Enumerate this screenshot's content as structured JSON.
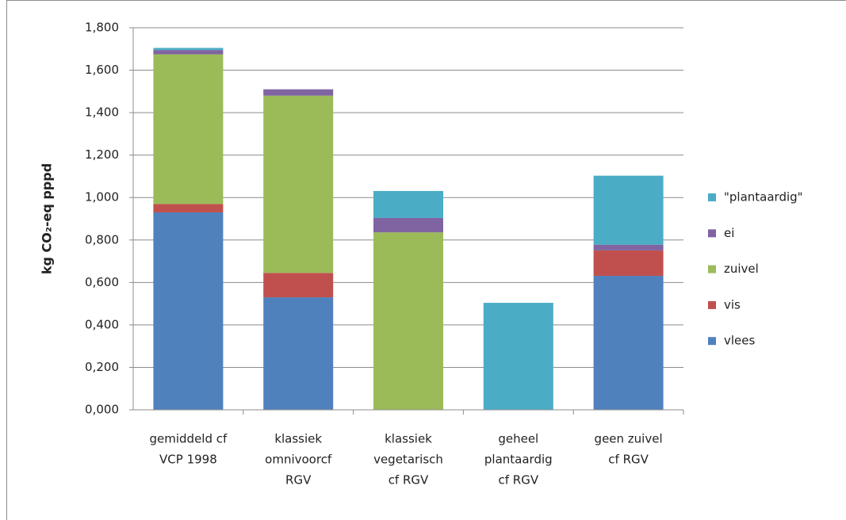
{
  "chart_data": {
    "type": "stacked_bar",
    "ylabel": "kg CO₂-eq pppd",
    "categories": [
      [
        "gemiddeld cf",
        "VCP 1998"
      ],
      [
        "klassiek",
        "omnivoorcf",
        "RGV"
      ],
      [
        "klassiek",
        "vegetarisch",
        "cf RGV"
      ],
      [
        "geheel",
        "plantaardig",
        "cf RGV"
      ],
      [
        "geen zuivel",
        "cf RGV"
      ]
    ],
    "series": [
      {
        "name": "vlees",
        "color": "#4f81bd",
        "values": [
          0.93,
          0.53,
          0,
          0,
          0.631
        ]
      },
      {
        "name": "vis",
        "color": "#c0504d",
        "values": [
          0.04,
          0.115,
          0,
          0,
          0.12
        ]
      },
      {
        "name": "zuivel",
        "color": "#9bbb59",
        "values": [
          0.705,
          0.835,
          0.836,
          0,
          0
        ]
      },
      {
        "name": "ei",
        "color": "#8064a2",
        "values": [
          0.02,
          0.03,
          0.068,
          0,
          0.027
        ]
      },
      {
        "name": "\"plantaardig\"",
        "color": "#4bacc6",
        "values": [
          0.01,
          0,
          0.127,
          0.504,
          0.325
        ]
      }
    ],
    "ylim": [
      0,
      1.8
    ],
    "yticks": [
      {
        "value": 0,
        "label": "0,000"
      },
      {
        "value": 0.2,
        "label": "0,200"
      },
      {
        "value": 0.4,
        "label": "0,400"
      },
      {
        "value": 0.6,
        "label": "0,600"
      },
      {
        "value": 0.8,
        "label": "0,800"
      },
      {
        "value": 1.0,
        "label": "1,000"
      },
      {
        "value": 1.2,
        "label": "1,200"
      },
      {
        "value": 1.4,
        "label": "1,400"
      },
      {
        "value": 1.6,
        "label": "1,600"
      },
      {
        "value": 1.8,
        "label": "1,800"
      }
    ],
    "grid": true,
    "legend": "right"
  }
}
